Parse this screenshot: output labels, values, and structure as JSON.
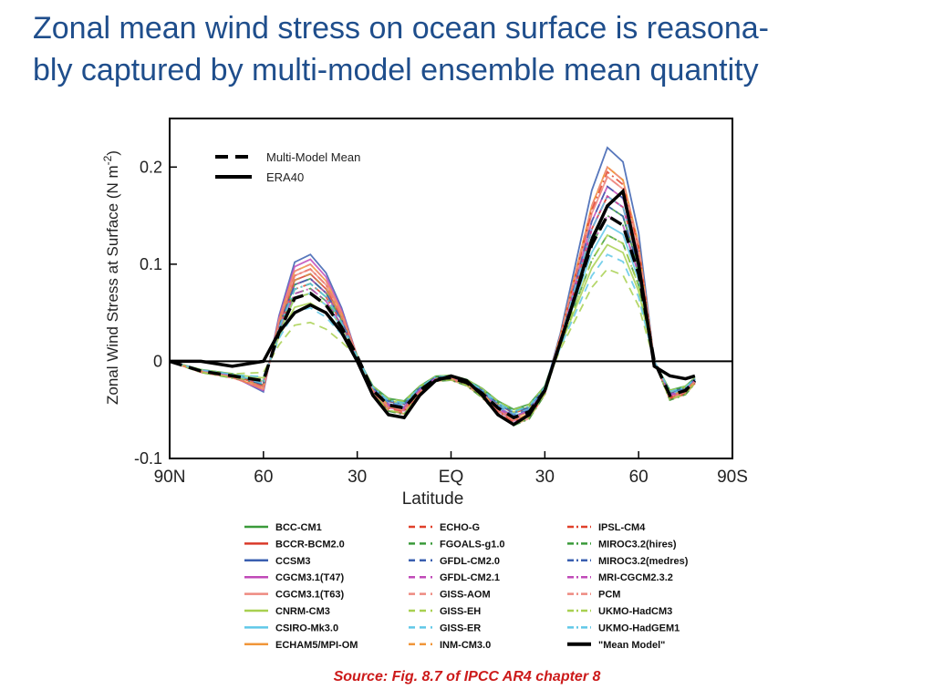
{
  "slide": {
    "title_line1": "Zonal mean wind stress on ocean surface is reasona-",
    "title_line2": "bly captured by multi-model ensemble mean quantity",
    "source": "Source: Fig. 8.7 of IPCC AR4 chapter 8",
    "title_color": "#1f4e8c",
    "source_color": "#cc1a1a"
  },
  "chart_data": {
    "type": "line",
    "title": "",
    "xlabel": "Latitude",
    "ylabel": "Zonal Wind Stress at Surface (N m",
    "ylabel_superscript": "-2",
    "ylabel_close": ")",
    "xlim": [
      90,
      -90
    ],
    "ylim": [
      -0.1,
      0.25
    ],
    "x_ticks": [
      90,
      60,
      30,
      0,
      -30,
      -60,
      -90
    ],
    "x_tick_labels": [
      "90N",
      "60",
      "30",
      "EQ",
      "30",
      "60",
      "90S"
    ],
    "y_ticks": [
      -0.1,
      0,
      0.1,
      0.2
    ],
    "y_tick_labels": [
      "-0.1",
      "0",
      "0.1",
      "0.2"
    ],
    "zero_line": true,
    "grid": false,
    "inner_legend": [
      {
        "name": "Multi-Model Mean",
        "style": "dashed",
        "color": "#000000"
      },
      {
        "name": "ERA40",
        "style": "solid",
        "color": "#000000"
      }
    ],
    "series": [
      {
        "name": "Multi-Model Mean",
        "color": "#000000",
        "style": "dashed",
        "width": 3.5,
        "x": [
          90,
          80,
          70,
          60,
          55,
          50,
          45,
          40,
          35,
          30,
          25,
          20,
          15,
          10,
          5,
          0,
          -5,
          -10,
          -15,
          -20,
          -25,
          -30,
          -35,
          -40,
          -45,
          -50,
          -55,
          -60,
          -65,
          -70,
          -75,
          -78
        ],
        "y": [
          0,
          -0.01,
          -0.015,
          -0.02,
          0.03,
          0.065,
          0.07,
          0.058,
          0.035,
          0.005,
          -0.03,
          -0.045,
          -0.048,
          -0.03,
          -0.018,
          -0.017,
          -0.022,
          -0.033,
          -0.048,
          -0.058,
          -0.052,
          -0.03,
          0.02,
          0.07,
          0.12,
          0.15,
          0.14,
          0.09,
          0.0,
          -0.035,
          -0.03,
          -0.02
        ]
      },
      {
        "name": "ERA40",
        "color": "#000000",
        "style": "solid",
        "width": 3.5,
        "x": [
          90,
          80,
          70,
          60,
          55,
          50,
          45,
          40,
          35,
          30,
          25,
          20,
          15,
          10,
          5,
          0,
          -5,
          -10,
          -15,
          -20,
          -25,
          -30,
          -35,
          -40,
          -45,
          -50,
          -55,
          -60,
          -65,
          -70,
          -75,
          -78
        ],
        "y": [
          0,
          0,
          -0.005,
          0.0,
          0.03,
          0.05,
          0.058,
          0.05,
          0.03,
          0.0,
          -0.035,
          -0.055,
          -0.058,
          -0.035,
          -0.02,
          -0.015,
          -0.02,
          -0.035,
          -0.055,
          -0.065,
          -0.055,
          -0.03,
          0.02,
          0.07,
          0.125,
          0.16,
          0.175,
          0.1,
          -0.005,
          -0.015,
          -0.018,
          -0.015
        ]
      }
    ],
    "model_legend": [
      {
        "name": "BCC-CM1",
        "color": "#3a9a3a",
        "style": "solid",
        "peak_n": 0.085,
        "peak_s": 0.16
      },
      {
        "name": "BCCR-BCM2.0",
        "color": "#d93a2a",
        "style": "solid",
        "peak_n": 0.09,
        "peak_s": 0.17
      },
      {
        "name": "CCSM3",
        "color": "#3a5fb0",
        "style": "solid",
        "peak_n": 0.11,
        "peak_s": 0.22
      },
      {
        "name": "CGCM3.1(T47)",
        "color": "#c04ab8",
        "style": "solid",
        "peak_n": 0.105,
        "peak_s": 0.18
      },
      {
        "name": "CGCM3.1(T63)",
        "color": "#ee8a80",
        "style": "solid",
        "peak_n": 0.095,
        "peak_s": 0.19
      },
      {
        "name": "CNRM-CM3",
        "color": "#a8d050",
        "style": "solid",
        "peak_n": 0.06,
        "peak_s": 0.12
      },
      {
        "name": "CSIRO-Mk3.0",
        "color": "#60c8e8",
        "style": "solid",
        "peak_n": 0.07,
        "peak_s": 0.14
      },
      {
        "name": "ECHAM5/MPI-OM",
        "color": "#f0963a",
        "style": "solid",
        "peak_n": 0.1,
        "peak_s": 0.2
      },
      {
        "name": "ECHO-G",
        "color": "#e0402a",
        "style": "dashed",
        "peak_n": 0.08,
        "peak_s": 0.17
      },
      {
        "name": "FGOALS-g1.0",
        "color": "#3a9a3a",
        "style": "dashed",
        "peak_n": 0.075,
        "peak_s": 0.13
      },
      {
        "name": "GFDL-CM2.0",
        "color": "#3a5fb0",
        "style": "dashed",
        "peak_n": 0.09,
        "peak_s": 0.18
      },
      {
        "name": "GFDL-CM2.1",
        "color": "#c04ab8",
        "style": "dashed",
        "peak_n": 0.085,
        "peak_s": 0.17
      },
      {
        "name": "GISS-AOM",
        "color": "#ee8a80",
        "style": "dashed",
        "peak_n": 0.1,
        "peak_s": 0.19
      },
      {
        "name": "GISS-EH",
        "color": "#a8d050",
        "style": "dashed",
        "peak_n": 0.04,
        "peak_s": 0.095
      },
      {
        "name": "GISS-ER",
        "color": "#60c8e8",
        "style": "dashed",
        "peak_n": 0.055,
        "peak_s": 0.11
      },
      {
        "name": "INM-CM3.0",
        "color": "#f0963a",
        "style": "dashed",
        "peak_n": 0.09,
        "peak_s": 0.2
      },
      {
        "name": "IPSL-CM4",
        "color": "#e0402a",
        "style": "dashdot",
        "peak_n": 0.095,
        "peak_s": 0.195
      },
      {
        "name": "MIROC3.2(hires)",
        "color": "#3a9a3a",
        "style": "dashdot",
        "peak_n": 0.08,
        "peak_s": 0.15
      },
      {
        "name": "MIROC3.2(medres)",
        "color": "#3a5fb0",
        "style": "dashdot",
        "peak_n": 0.085,
        "peak_s": 0.16
      },
      {
        "name": "MRI-CGCM2.3.2",
        "color": "#c04ab8",
        "style": "dashdot",
        "peak_n": 0.075,
        "peak_s": 0.15
      },
      {
        "name": "PCM",
        "color": "#ee8a80",
        "style": "dashdot",
        "peak_n": 0.095,
        "peak_s": 0.2
      },
      {
        "name": "UKMO-HadCM3",
        "color": "#a8d050",
        "style": "dashdot",
        "peak_n": 0.07,
        "peak_s": 0.13
      },
      {
        "name": "UKMO-HadGEM1",
        "color": "#60c8e8",
        "style": "dashdot",
        "peak_n": 0.08,
        "peak_s": 0.17
      },
      {
        "name": "\"Mean Model\"",
        "color": "#000000",
        "style": "solid",
        "peak_n": null,
        "peak_s": null
      }
    ]
  }
}
